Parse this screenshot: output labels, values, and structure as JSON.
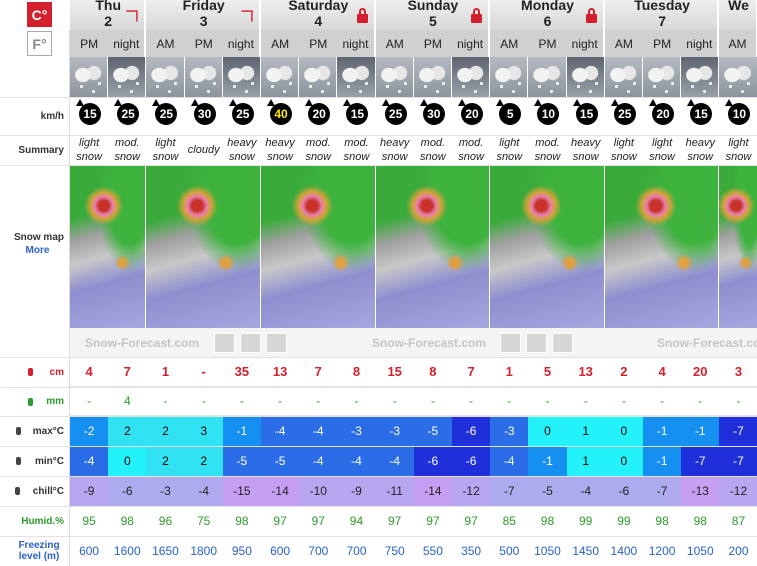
{
  "unit_buttons": [
    "C°",
    "F°"
  ],
  "days": [
    {
      "name": "Thu",
      "date": 2,
      "periods": [
        "PM",
        "night"
      ]
    },
    {
      "name": "Friday",
      "date": 3,
      "periods": [
        "AM",
        "PM",
        "night"
      ]
    },
    {
      "name": "Saturday",
      "date": 4,
      "periods": [
        "AM",
        "PM",
        "night"
      ]
    },
    {
      "name": "Sunday",
      "date": 5,
      "periods": [
        "AM",
        "PM",
        "night"
      ]
    },
    {
      "name": "Monday",
      "date": 6,
      "periods": [
        "AM",
        "PM",
        "night"
      ]
    },
    {
      "name": "Tuesday",
      "date": 7,
      "periods": [
        "AM",
        "PM",
        "night"
      ]
    },
    {
      "name": "We",
      "periods": [
        "AM"
      ]
    }
  ],
  "row_labels": {
    "wind": "km/h",
    "summary": "Summary",
    "snow_map": "Snow map",
    "more": "More",
    "snow": "cm",
    "rain": "mm",
    "max": "max°C",
    "min": "min°C",
    "chill": "chill°C",
    "humid": "Humid.%",
    "freezing": "Freezing level (m)"
  },
  "map_watermark": "Snow-Forecast.com",
  "wind": [
    15,
    25,
    25,
    30,
    25,
    40,
    20,
    15,
    25,
    30,
    20,
    5,
    10,
    15,
    25,
    20,
    15,
    10
  ],
  "summary": [
    "light snow",
    "mod. snow",
    "light snow",
    "cloudy",
    "heavy snow",
    "heavy snow",
    "mod. snow",
    "mod. snow",
    "heavy snow",
    "mod. snow",
    "mod. snow",
    "light snow",
    "mod. snow",
    "heavy snow",
    "light snow",
    "light snow",
    "heavy snow",
    "light snow"
  ],
  "snow_cm": [
    4,
    7,
    1,
    "-",
    35,
    13,
    7,
    8,
    15,
    8,
    7,
    1,
    5,
    13,
    2,
    4,
    20,
    3
  ],
  "rain_mm": [
    "-",
    4,
    "-",
    "-",
    "-",
    "-",
    "-",
    "-",
    "-",
    "-",
    "-",
    "-",
    "-",
    "-",
    "-",
    "-",
    "-",
    "-"
  ],
  "max_c": [
    -2,
    2,
    2,
    3,
    -1,
    -4,
    -4,
    -3,
    -3,
    -5,
    -6,
    -3,
    0,
    1,
    0,
    -1,
    -1,
    -7
  ],
  "min_c": [
    -4,
    0,
    2,
    2,
    -5,
    -5,
    -4,
    -4,
    -4,
    -6,
    -6,
    -4,
    -1,
    1,
    0,
    -1,
    -7,
    -7
  ],
  "chill_c": [
    -9,
    -6,
    -3,
    -4,
    -15,
    -14,
    -10,
    -9,
    -11,
    -14,
    -12,
    -7,
    -5,
    -4,
    -6,
    -7,
    -13,
    -12
  ],
  "humidity": [
    95,
    98,
    96,
    75,
    98,
    97,
    97,
    94,
    97,
    97,
    97,
    85,
    98,
    99,
    99,
    98,
    98,
    87
  ],
  "freezing_level_m": [
    600,
    1600,
    1650,
    1800,
    950,
    600,
    700,
    700,
    750,
    550,
    350,
    500,
    1050,
    1450,
    1400,
    1200,
    1050,
    200
  ]
}
